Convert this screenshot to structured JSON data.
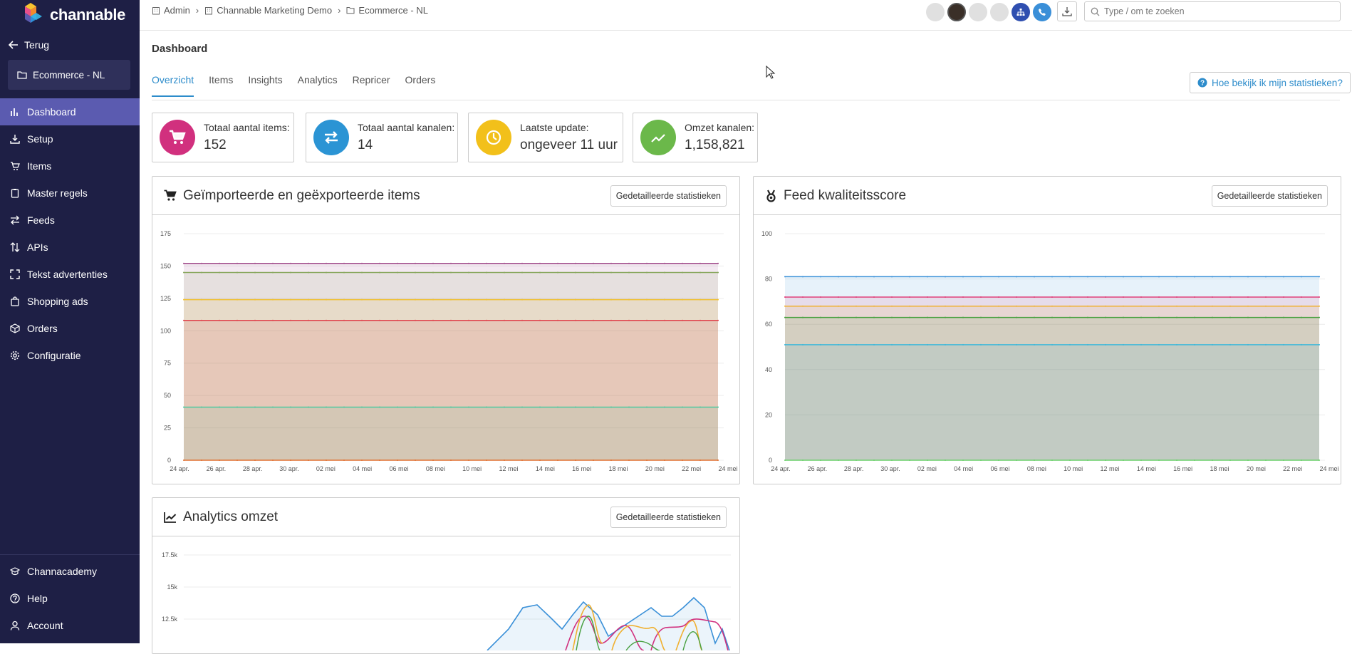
{
  "app": {
    "name": "channable",
    "brand_color": "#5b5bb0",
    "sidebar_bg": "#1e1f45"
  },
  "sidebar": {
    "back_label": "Terug",
    "project_label": "Ecommerce - NL",
    "items": [
      {
        "label": "Dashboard",
        "icon": "bar-chart-icon",
        "active": true
      },
      {
        "label": "Setup",
        "icon": "download-icon"
      },
      {
        "label": "Items",
        "icon": "cart-icon"
      },
      {
        "label": "Master regels",
        "icon": "clipboard-icon"
      },
      {
        "label": "Feeds",
        "icon": "arrows-icon"
      },
      {
        "label": "APIs",
        "icon": "sort-icon"
      },
      {
        "label": "Tekst advertenties",
        "icon": "expand-icon"
      },
      {
        "label": "Shopping ads",
        "icon": "bag-icon"
      },
      {
        "label": "Orders",
        "icon": "box-icon"
      },
      {
        "label": "Configuratie",
        "icon": "gear-icon"
      }
    ],
    "bottom_items": [
      {
        "label": "Channacademy",
        "icon": "graduation-icon"
      },
      {
        "label": "Help",
        "icon": "help-icon"
      },
      {
        "label": "Account",
        "icon": "user-icon"
      }
    ]
  },
  "breadcrumb": [
    {
      "label": "Admin",
      "icon": "building-icon"
    },
    {
      "label": "Channable Marketing Demo",
      "icon": "building-icon"
    },
    {
      "label": "Ecommerce - NL",
      "icon": "folder-icon"
    }
  ],
  "search": {
    "placeholder": "Type / om te zoeken"
  },
  "page": {
    "title": "Dashboard"
  },
  "tabs": [
    "Overzicht",
    "Items",
    "Insights",
    "Analytics",
    "Repricer",
    "Orders"
  ],
  "help_button": "Hoe bekijk ik mijn statistieken?",
  "stats": [
    {
      "label": "Totaal aantal items:",
      "value": "152",
      "color": "#d1307e",
      "icon": "cart-icon"
    },
    {
      "label": "Totaal aantal kanalen:",
      "value": "14",
      "color": "#2b94d4",
      "icon": "exchange-icon"
    },
    {
      "label": "Laatste update:",
      "value": "ongeveer 11 uur",
      "color": "#f2c01a",
      "icon": "clock-icon"
    },
    {
      "label": "Omzet kanalen:",
      "value": "1,158,821",
      "color": "#6bb84a",
      "icon": "trend-icon"
    }
  ],
  "detail_button": "Gedetailleerde statistieken",
  "chart_data": [
    {
      "type": "area",
      "title": "Geïmporteerde en geëxporteerde items",
      "categories": [
        "24 apr.",
        "26 apr.",
        "28 apr.",
        "30 apr.",
        "02 mei",
        "04 mei",
        "06 mei",
        "08 mei",
        "10 mei",
        "12 mei",
        "14 mei",
        "16 mei",
        "18 mei",
        "20 mei",
        "22 mei",
        "24 mei"
      ],
      "ylim": [
        0,
        175
      ],
      "yticks": [
        "0",
        "25",
        "50",
        "75",
        "100",
        "125",
        "150",
        "175"
      ],
      "series": [
        {
          "name": "s1",
          "value": 152,
          "color": "#a04a8a"
        },
        {
          "name": "s2",
          "value": 145,
          "color": "#8aa860"
        },
        {
          "name": "s3",
          "value": 124,
          "color": "#f0c030"
        },
        {
          "name": "s4",
          "value": 108,
          "color": "#e0404a"
        },
        {
          "name": "s5",
          "value": 41,
          "color": "#50c8a0"
        },
        {
          "name": "s6",
          "value": 0,
          "color": "#e07030"
        }
      ]
    },
    {
      "type": "area",
      "title": "Feed kwaliteitsscore",
      "categories": [
        "24 apr.",
        "26 apr.",
        "28 apr.",
        "30 apr.",
        "02 mei",
        "04 mei",
        "06 mei",
        "08 mei",
        "10 mei",
        "12 mei",
        "14 mei",
        "16 mei",
        "18 mei",
        "20 mei",
        "22 mei",
        "24 mei"
      ],
      "ylim": [
        0,
        100
      ],
      "yticks": [
        "0",
        "20",
        "40",
        "60",
        "80",
        "100"
      ],
      "series": [
        {
          "name": "s1",
          "value": 81,
          "color": "#3a90d8"
        },
        {
          "name": "s2",
          "value": 72,
          "color": "#e0407a"
        },
        {
          "name": "s3",
          "value": 68,
          "color": "#f0b030"
        },
        {
          "name": "s4",
          "value": 63,
          "color": "#48a040"
        },
        {
          "name": "s5",
          "value": 51,
          "color": "#40b8d8"
        },
        {
          "name": "s6",
          "value": 0,
          "color": "#6cd06c"
        }
      ]
    },
    {
      "type": "line",
      "title": "Analytics omzet",
      "ylim": [
        10000,
        17500
      ],
      "yticks": [
        "12.5k",
        "15k",
        "17.5k"
      ]
    }
  ]
}
